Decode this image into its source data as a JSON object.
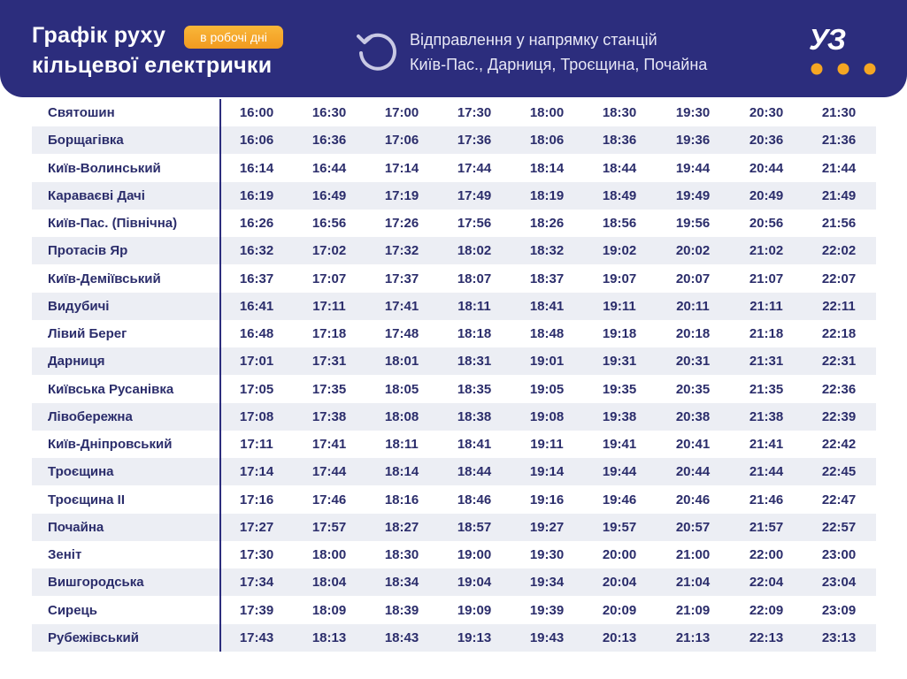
{
  "header": {
    "title_lines": [
      "Графік руху",
      "кільцевої електрички"
    ],
    "badge": "в робочі дні",
    "direction_lines": [
      "Відправлення у напрямку станцій",
      "Київ-Пас., Дарниця, Троєщина, Почайна"
    ],
    "logo": "УЗ"
  },
  "table": {
    "rows": [
      [
        "Святошин",
        "16:00",
        "16:30",
        "17:00",
        "17:30",
        "18:00",
        "18:30",
        "19:30",
        "20:30",
        "21:30"
      ],
      [
        "Борщагівка",
        "16:06",
        "16:36",
        "17:06",
        "17:36",
        "18:06",
        "18:36",
        "19:36",
        "20:36",
        "21:36"
      ],
      [
        "Київ-Волинський",
        "16:14",
        "16:44",
        "17:14",
        "17:44",
        "18:14",
        "18:44",
        "19:44",
        "20:44",
        "21:44"
      ],
      [
        "Караваєві Дачі",
        "16:19",
        "16:49",
        "17:19",
        "17:49",
        "18:19",
        "18:49",
        "19:49",
        "20:49",
        "21:49"
      ],
      [
        "Київ-Пас. (Північна)",
        "16:26",
        "16:56",
        "17:26",
        "17:56",
        "18:26",
        "18:56",
        "19:56",
        "20:56",
        "21:56"
      ],
      [
        "Протасів Яр",
        "16:32",
        "17:02",
        "17:32",
        "18:02",
        "18:32",
        "19:02",
        "20:02",
        "21:02",
        "22:02"
      ],
      [
        "Київ-Деміївський",
        "16:37",
        "17:07",
        "17:37",
        "18:07",
        "18:37",
        "19:07",
        "20:07",
        "21:07",
        "22:07"
      ],
      [
        "Видубичі",
        "16:41",
        "17:11",
        "17:41",
        "18:11",
        "18:41",
        "19:11",
        "20:11",
        "21:11",
        "22:11"
      ],
      [
        "Лівий Берег",
        "16:48",
        "17:18",
        "17:48",
        "18:18",
        "18:48",
        "19:18",
        "20:18",
        "21:18",
        "22:18"
      ],
      [
        "Дарниця",
        "17:01",
        "17:31",
        "18:01",
        "18:31",
        "19:01",
        "19:31",
        "20:31",
        "21:31",
        "22:31"
      ],
      [
        "Київська Русанівка",
        "17:05",
        "17:35",
        "18:05",
        "18:35",
        "19:05",
        "19:35",
        "20:35",
        "21:35",
        "22:36"
      ],
      [
        "Лівобережна",
        "17:08",
        "17:38",
        "18:08",
        "18:38",
        "19:08",
        "19:38",
        "20:38",
        "21:38",
        "22:39"
      ],
      [
        "Київ-Дніпровський",
        "17:11",
        "17:41",
        "18:11",
        "18:41",
        "19:11",
        "19:41",
        "20:41",
        "21:41",
        "22:42"
      ],
      [
        "Троєщина",
        "17:14",
        "17:44",
        "18:14",
        "18:44",
        "19:14",
        "19:44",
        "20:44",
        "21:44",
        "22:45"
      ],
      [
        "Троєщина II",
        "17:16",
        "17:46",
        "18:16",
        "18:46",
        "19:16",
        "19:46",
        "20:46",
        "21:46",
        "22:47"
      ],
      [
        "Почайна",
        "17:27",
        "17:57",
        "18:27",
        "18:57",
        "19:27",
        "19:57",
        "20:57",
        "21:57",
        "22:57"
      ],
      [
        "Зеніт",
        "17:30",
        "18:00",
        "18:30",
        "19:00",
        "19:30",
        "20:00",
        "21:00",
        "22:00",
        "23:00"
      ],
      [
        "Вишгородська",
        "17:34",
        "18:04",
        "18:34",
        "19:04",
        "19:34",
        "20:04",
        "21:04",
        "22:04",
        "23:04"
      ],
      [
        "Сирець",
        "17:39",
        "18:09",
        "18:39",
        "19:09",
        "19:39",
        "20:09",
        "21:09",
        "22:09",
        "23:09"
      ],
      [
        "Рубежівський",
        "17:43",
        "18:13",
        "18:43",
        "19:13",
        "19:43",
        "20:13",
        "21:13",
        "22:13",
        "23:13"
      ]
    ]
  }
}
